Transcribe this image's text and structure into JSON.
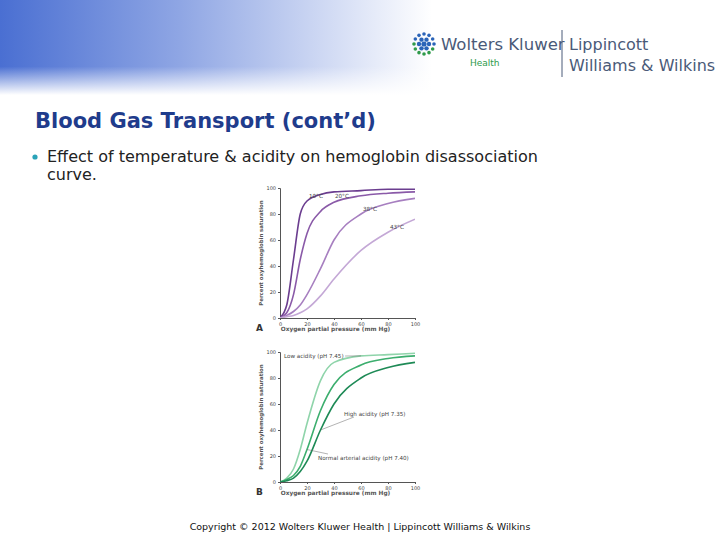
{
  "header": {
    "logo": [
      "Wolters Kluwer",
      "Health",
      "Lippincott",
      "Williams & Wilkins"
    ]
  },
  "title": "Blood Gas Transport (cont’d)",
  "bullets": [
    [
      "Effect of temperature & acidity on hemoglobin disassociation",
      "curve."
    ]
  ],
  "footer": "Copyright © 2012 Wolters Kluwer Health | Lippincott Williams & Wilkins",
  "chart_data": [
    {
      "type": "line",
      "title": "A",
      "x_label": "Oxygen partial pressure (mm Hg)",
      "y_label": "Percent oxyhemoglobin saturation",
      "x": [
        0,
        5,
        10,
        15,
        20,
        30,
        40,
        60,
        80,
        100
      ],
      "series": [
        {
          "name": "10°C",
          "color": "#6b3d8f",
          "values": [
            0,
            10,
            45,
            80,
            90,
            95,
            97,
            98,
            99,
            99
          ]
        },
        {
          "name": "20°C",
          "color": "#8a5aa8",
          "values": [
            0,
            4,
            18,
            45,
            65,
            82,
            89,
            94,
            96,
            97
          ]
        },
        {
          "name": "38°C",
          "color": "#a77fc0",
          "values": [
            0,
            2,
            5,
            10,
            18,
            38,
            60,
            80,
            88,
            92
          ]
        },
        {
          "name": "43°C",
          "color": "#c4a8d6",
          "values": [
            0,
            1,
            2,
            4,
            7,
            17,
            30,
            52,
            66,
            76
          ]
        }
      ],
      "xlim": [
        0,
        100
      ],
      "ylim": [
        0,
        100
      ],
      "xticks": [
        0,
        20,
        40,
        60,
        80,
        100
      ],
      "yticks": [
        0,
        20,
        40,
        60,
        80,
        100
      ],
      "grid": false
    },
    {
      "type": "line",
      "title": "B",
      "x_label": "Oxygen partial pressure (mm Hg)",
      "y_label": "Percent oxyhemoglobin saturation",
      "x": [
        0,
        5,
        10,
        15,
        20,
        30,
        40,
        60,
        80,
        100
      ],
      "series": [
        {
          "name": "Low acidity (pH 7.45)",
          "color": "#8fd4aa",
          "values": [
            0,
            3,
            10,
            25,
            45,
            78,
            92,
            97,
            98,
            99
          ]
        },
        {
          "name": "Normal arterial acidity (pH 7.40)",
          "color": "#3cae6e",
          "values": [
            0,
            2,
            5,
            12,
            25,
            55,
            75,
            90,
            95,
            97
          ]
        },
        {
          "name": "High acidity (pH 7.35)",
          "color": "#1e8a56",
          "values": [
            0,
            1,
            3,
            8,
            16,
            40,
            60,
            80,
            88,
            92
          ]
        }
      ],
      "xlim": [
        0,
        100
      ],
      "ylim": [
        0,
        100
      ],
      "xticks": [
        0,
        20,
        40,
        60,
        80,
        100
      ],
      "yticks": [
        0,
        20,
        40,
        60,
        80,
        100
      ],
      "grid": false
    }
  ]
}
